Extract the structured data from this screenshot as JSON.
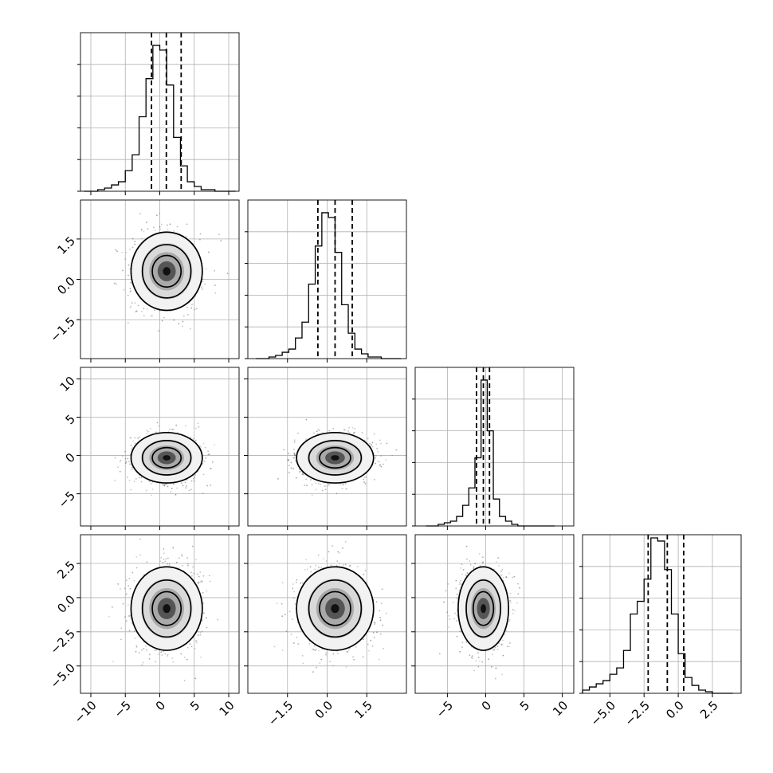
{
  "chart_data": {
    "type": "corner",
    "parameters": 4,
    "panels": [
      {
        "id": "hist-0",
        "type": "histogram",
        "param": 0,
        "xlim": [
          -11.5,
          11.5
        ],
        "bins_x": [
          -11,
          -10,
          -9,
          -8,
          -7,
          -6,
          -5,
          -4,
          -3,
          -2,
          -1,
          0,
          1,
          2,
          3,
          4,
          5,
          6,
          7,
          8,
          9,
          10,
          11
        ],
        "counts": [
          0,
          0,
          0.01,
          0.02,
          0.04,
          0.06,
          0.13,
          0.23,
          0.47,
          0.71,
          0.92,
          0.89,
          0.67,
          0.34,
          0.16,
          0.06,
          0.03,
          0.01,
          0.01,
          0,
          0,
          0
        ],
        "quantiles": [
          -1.2,
          0.95,
          3.1
        ],
        "ylim": [
          0,
          1.0
        ]
      },
      {
        "id": "hist-1",
        "type": "histogram",
        "param": 1,
        "xlim": [
          -3.0,
          3.0
        ],
        "bins_x": [
          -2.7,
          -2.45,
          -2.2,
          -1.95,
          -1.7,
          -1.45,
          -1.2,
          -0.95,
          -0.7,
          -0.45,
          -0.2,
          0.05,
          0.3,
          0.55,
          0.8,
          1.05,
          1.3,
          1.55,
          1.8,
          2.05,
          2.3,
          2.55,
          2.8
        ],
        "counts": [
          0,
          0,
          0.01,
          0.02,
          0.04,
          0.06,
          0.13,
          0.23,
          0.47,
          0.71,
          0.92,
          0.89,
          0.67,
          0.34,
          0.16,
          0.06,
          0.03,
          0.01,
          0.01,
          0,
          0,
          0
        ],
        "quantiles": [
          -0.35,
          0.3,
          0.95
        ],
        "ylim": [
          0,
          1.0
        ]
      },
      {
        "id": "hist-2",
        "type": "histogram",
        "param": 2,
        "xlim": [
          -9.2,
          11.5
        ],
        "bins_x": [
          -7.8,
          -7.0,
          -6.2,
          -5.4,
          -4.6,
          -3.8,
          -3.0,
          -2.2,
          -1.4,
          -0.6,
          0.2,
          1.0,
          1.8,
          2.6,
          3.4,
          4.2,
          5.0,
          5.8,
          6.6,
          7.4,
          8.2,
          9.0
        ],
        "counts": [
          0,
          0,
          0.01,
          0.02,
          0.03,
          0.06,
          0.13,
          0.24,
          0.43,
          0.92,
          0.6,
          0.17,
          0.06,
          0.03,
          0.01,
          0,
          0,
          0,
          0,
          0,
          0
        ],
        "quantiles": [
          -1.2,
          -0.3,
          0.5
        ],
        "ylim": [
          0,
          1.0
        ]
      },
      {
        "id": "hist-3",
        "type": "histogram",
        "param": 3,
        "xlim": [
          -7.0,
          4.6
        ],
        "bins_x": [
          -7.0,
          -6.5,
          -6.0,
          -5.5,
          -5.0,
          -4.5,
          -4.0,
          -3.5,
          -3.0,
          -2.5,
          -2.0,
          -1.5,
          -1.0,
          -0.5,
          0.0,
          0.5,
          1.0,
          1.5,
          2.0,
          2.5,
          3.0,
          3.5,
          4.0
        ],
        "counts": [
          0.02,
          0.04,
          0.06,
          0.08,
          0.12,
          0.16,
          0.27,
          0.5,
          0.58,
          0.72,
          0.98,
          0.96,
          0.78,
          0.5,
          0.25,
          0.1,
          0.05,
          0.02,
          0.01,
          0,
          0,
          0
        ],
        "quantiles": [
          -2.2,
          -0.8,
          0.4
        ],
        "ylim": [
          0,
          1.0
        ]
      },
      {
        "id": "pair-1-0",
        "type": "density",
        "x": 0,
        "y": 1,
        "xlim": [
          -11.5,
          11.5
        ],
        "ylim": [
          -2.95,
          2.95
        ],
        "center": [
          1.0,
          0.3
        ],
        "sd": [
          2.2,
          0.62
        ],
        "rho": 0.0
      },
      {
        "id": "pair-2-0",
        "type": "density",
        "x": 0,
        "y": 2,
        "xlim": [
          -11.5,
          11.5
        ],
        "ylim": [
          -9.2,
          11.5
        ],
        "center": [
          1.0,
          -0.3
        ],
        "sd": [
          2.2,
          1.4
        ],
        "rho": 0.0
      },
      {
        "id": "pair-2-1",
        "type": "density",
        "x": 1,
        "y": 2,
        "xlim": [
          -3.0,
          3.0
        ],
        "ylim": [
          -9.2,
          11.5
        ],
        "center": [
          0.3,
          -0.3
        ],
        "sd": [
          0.62,
          1.4
        ],
        "rho": 0.0
      },
      {
        "id": "pair-3-0",
        "type": "density",
        "x": 0,
        "y": 3,
        "xlim": [
          -11.5,
          11.5
        ],
        "ylim": [
          -7.0,
          4.6
        ],
        "center": [
          1.0,
          -0.8
        ],
        "sd": [
          2.2,
          1.3
        ],
        "rho": 0.0
      },
      {
        "id": "pair-3-1",
        "type": "density",
        "x": 1,
        "y": 3,
        "xlim": [
          -3.0,
          3.0
        ],
        "ylim": [
          -7.0,
          4.6
        ],
        "center": [
          0.3,
          -0.8
        ],
        "sd": [
          0.62,
          1.3
        ],
        "rho": 0.0
      },
      {
        "id": "pair-3-2",
        "type": "density",
        "x": 2,
        "y": 3,
        "xlim": [
          -9.2,
          11.5
        ],
        "ylim": [
          -7.0,
          4.6
        ],
        "center": [
          -0.3,
          -0.8
        ],
        "sd": [
          1.4,
          1.3
        ],
        "rho": 0.0
      }
    ],
    "x_ticks": {
      "0": [
        -10,
        -5,
        0,
        5,
        10
      ],
      "1": [
        -1.5,
        0.0,
        1.5
      ],
      "2": [
        -5,
        0,
        5,
        10
      ],
      "3": [
        -5.0,
        -2.5,
        0.0,
        2.5
      ]
    },
    "x_tick_labels": {
      "0": [
        "−10",
        "−5",
        "0",
        "5",
        "10"
      ],
      "1": [
        "−1.5",
        "0.0",
        "1.5"
      ],
      "2": [
        "−5",
        "0",
        "5",
        "10"
      ],
      "3": [
        "−5.0",
        "−2.5",
        "0.0",
        "2.5"
      ]
    },
    "y_ticks": {
      "1": [
        -1.5,
        0.0,
        1.5
      ],
      "2": [
        -5,
        0,
        5,
        10
      ],
      "3": [
        -5.0,
        -2.5,
        0.0,
        2.5
      ]
    },
    "y_tick_labels": {
      "1": [
        "−1.5",
        "0.0",
        "1.5"
      ],
      "2": [
        "−5",
        "0",
        "5",
        "10"
      ],
      "3": [
        "−5.0",
        "−2.5",
        "0.0",
        "2.5"
      ]
    },
    "hist_y_ticks": [
      0.2,
      0.4,
      0.6,
      0.8
    ],
    "grid": true,
    "colors": {
      "line": "#000000",
      "grid": "#b0b0b0",
      "scatter": "#555555"
    }
  }
}
